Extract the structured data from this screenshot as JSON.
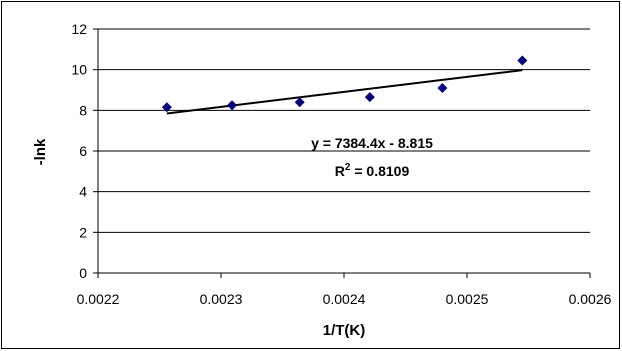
{
  "chart_data": {
    "type": "scatter",
    "xlabel": "1/T(K)",
    "ylabel": "-lnk",
    "xlim": [
      0.0022,
      0.0026
    ],
    "ylim": [
      0,
      12
    ],
    "x_ticks": [
      "0.0022",
      "0.0023",
      "0.0024",
      "0.0025",
      "0.0026"
    ],
    "y_ticks": [
      "0",
      "2",
      "4",
      "6",
      "8",
      "10",
      "12"
    ],
    "grid": "horizontal",
    "legend": "none",
    "series": [
      {
        "marker": "diamond",
        "color": "#000080",
        "x": [
          0.002256,
          0.002309,
          0.002364,
          0.002421,
          0.00248,
          0.002545
        ],
        "y": [
          8.15,
          8.25,
          8.4,
          8.65,
          9.1,
          10.45
        ]
      }
    ],
    "trendline": {
      "equation": "y = 7384.4x - 8.815",
      "r2_prefix": "R",
      "r2_sup": "2",
      "r2_value": " = 0.8109",
      "slope": 7384.4,
      "intercept": -8.815,
      "x_range": [
        0.002256,
        0.002545
      ]
    }
  }
}
